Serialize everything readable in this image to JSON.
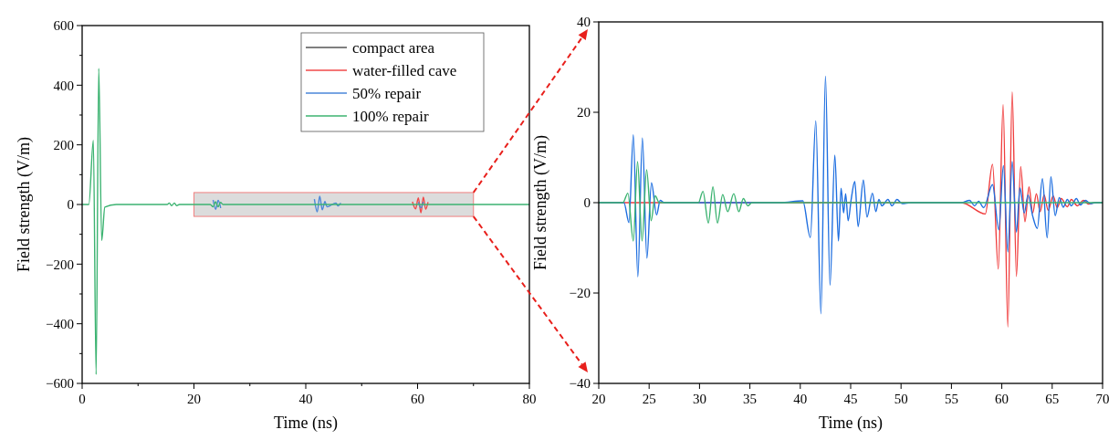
{
  "chart_data": [
    {
      "type": "line",
      "xlabel": "Time (ns)",
      "ylabel": "Field strength (V/m)",
      "xlim": [
        0,
        80
      ],
      "ylim": [
        -600,
        600
      ],
      "xticks": [
        0,
        {
          "value": 10,
          "label": null
        },
        20,
        {
          "value": 30,
          "label": null
        },
        40,
        {
          "value": 50,
          "label": null
        },
        60,
        {
          "value": 70,
          "label": null
        },
        80
      ],
      "yticks": [
        -600,
        {
          "value": -500,
          "label": null
        },
        -400,
        {
          "value": -300,
          "label": null
        },
        -200,
        {
          "value": -100,
          "label": null
        },
        0,
        {
          "value": 100,
          "label": null
        },
        200,
        {
          "value": 300,
          "label": null
        },
        400,
        {
          "value": 500,
          "label": null
        },
        600
      ],
      "legend": "top right",
      "series": [
        {
          "name": "compact area",
          "color": "#555555"
        },
        {
          "name": "water-filled cave",
          "color": "#f04848",
          "x": [
            59.08,
            59.65,
            60.13,
            60.6,
            61.03,
            61.45,
            61.87
          ],
          "values": [
            9,
            -15,
            22,
            -28,
            25,
            -16,
            8
          ]
        },
        {
          "name": "50% repair",
          "color": "#4a86d8",
          "x": [
            23.43,
            23.88,
            24.33,
            24.78,
            30,
            41.54,
            42.05,
            42.5,
            42.95,
            43.43,
            43.79,
            45.41,
            45.74,
            46.26,
            50,
            60.16,
            60.6,
            61.03
          ],
          "values": [
            15,
            -16,
            14,
            -12,
            null,
            18,
            -25,
            28,
            -18,
            10,
            -8,
            5,
            -5,
            5,
            null,
            8,
            -11,
            9
          ]
        },
        {
          "name": "100% repair",
          "color": "#3cb371",
          "x": [
            0,
            1.2,
            2.0,
            2.5,
            2.97,
            3.5,
            4.06,
            6.1,
            15.2,
            15.6,
            16.0,
            16.5,
            16.9,
            17.4,
            22.9,
            23.43,
            23.85,
            24.3,
            24.75,
            25.2,
            80
          ],
          "values": [
            0,
            0,
            215,
            -570,
            456,
            -121,
            -9,
            0,
            0,
            5,
            -4,
            5,
            -4,
            0,
            0,
            -8,
            9,
            -8,
            7,
            0,
            0
          ]
        }
      ]
    },
    {
      "type": "line",
      "xlabel": "Time (ns)",
      "ylabel": "Field strength (V/m)",
      "xlim": [
        20,
        70
      ],
      "ylim": [
        -40,
        40
      ],
      "xticks": [
        20,
        25,
        30,
        35,
        40,
        45,
        50,
        55,
        60,
        65,
        70
      ],
      "yticks": [
        -40,
        -20,
        0,
        20,
        40
      ],
      "series": [
        {
          "color": "#f03c3c",
          "x": [
            20,
            56,
            58.36,
            59.08,
            59.65,
            60.13,
            60.6,
            61.03,
            61.45,
            61.87,
            62.3,
            62.7,
            63.07,
            63.43,
            63.8,
            64.2,
            64.6,
            65.1,
            65.5,
            65.9,
            66.5,
            66.9,
            67.5,
            68.1,
            68.6,
            69.2,
            70
          ],
          "values": [
            0,
            0,
            -2.5,
            8.5,
            -14.7,
            21.7,
            -27.5,
            24.5,
            -16.3,
            8,
            -4.2,
            3.5,
            -2.3,
            2,
            -2,
            1.7,
            -1.7,
            1.5,
            -1.1,
            0.9,
            -0.9,
            0.7,
            -0.7,
            0.5,
            -0.3,
            0,
            0
          ]
        },
        {
          "color": "#1f6fe0",
          "x": [
            20,
            22.5,
            23.0,
            23.43,
            23.88,
            24.33,
            24.78,
            25.23,
            25.74,
            26.1,
            26.5,
            38,
            40.25,
            41.0,
            41.54,
            42.05,
            42.5,
            42.95,
            43.43,
            43.79,
            44.05,
            44.3,
            44.5,
            44.75,
            45.05,
            45.41,
            45.74,
            46.26,
            46.62,
            47.16,
            47.5,
            47.8,
            48.1,
            48.7,
            49.1,
            49.6,
            50.1,
            51,
            56,
            56.8,
            57.3,
            57.7,
            58.2,
            59.08,
            59.7,
            60.16,
            60.6,
            61.03,
            61.45,
            61.8,
            62.23,
            62.6,
            63.07,
            63.52,
            64.03,
            64.5,
            64.87,
            65.3,
            65.7,
            66.1,
            66.5,
            66.9,
            67.4,
            67.8,
            68.3,
            68.8,
            69.3,
            70
          ],
          "values": [
            0,
            0,
            -4.4,
            15,
            -16.4,
            14.3,
            -12.3,
            4.4,
            -2.7,
            0.5,
            0,
            0,
            0.4,
            -7.7,
            18.1,
            -24.6,
            28,
            -18.3,
            10.5,
            -8.5,
            3.2,
            -2.3,
            2,
            -4,
            0.7,
            4.7,
            -5.3,
            5,
            -3.2,
            2.1,
            -2,
            0.7,
            -0.7,
            0.7,
            -0.7,
            0.7,
            -0.2,
            0,
            0,
            0.5,
            -0.7,
            0.3,
            -1.1,
            4,
            -6,
            8.2,
            -10.9,
            9.1,
            -6.5,
            3.3,
            -2.3,
            1.7,
            -3,
            -5.7,
            5.3,
            -7.8,
            5.7,
            -2.9,
            1.1,
            -1,
            0.7,
            -0.7,
            0.9,
            -0.5,
            0.5,
            -0.2,
            0,
            0
          ]
        },
        {
          "color": "#3cb371",
          "x": [
            20,
            22.4,
            22.89,
            23.43,
            23.85,
            24.3,
            24.75,
            25.2,
            25.6,
            26.0,
            29.89,
            30.34,
            30.88,
            31.33,
            31.78,
            32.3,
            32.8,
            33.4,
            33.9,
            34.35,
            34.8,
            35.2,
            70
          ],
          "values": [
            0,
            0,
            2.1,
            -8.5,
            9.1,
            -8.5,
            7.3,
            -4,
            1.5,
            0,
            0,
            2.5,
            -4.5,
            3.5,
            -4.5,
            1.8,
            -2,
            2,
            -2,
            0.9,
            -0.7,
            0,
            0
          ]
        }
      ]
    }
  ]
}
